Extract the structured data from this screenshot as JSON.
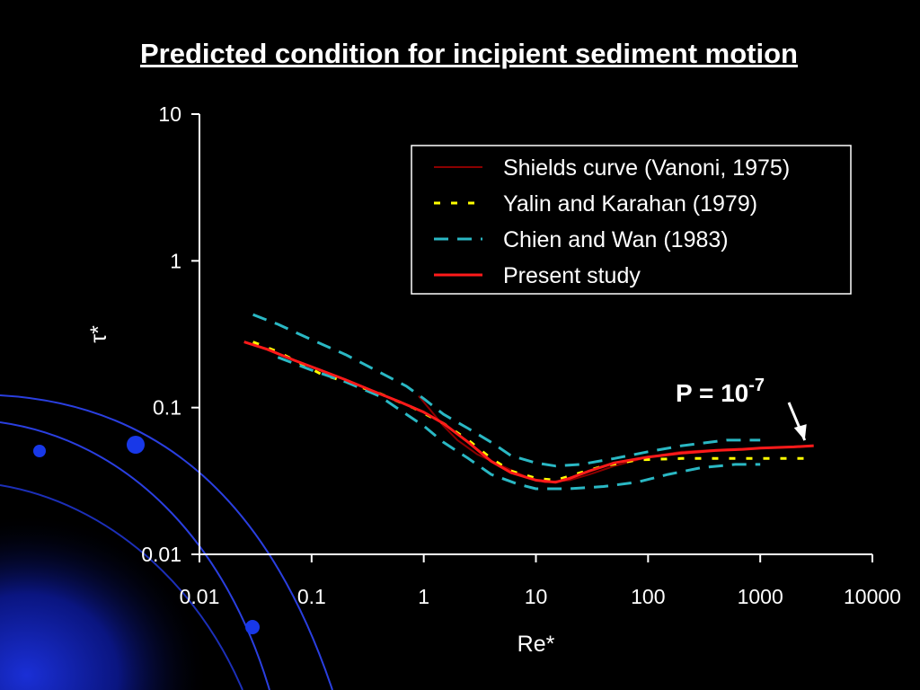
{
  "chart_data": {
    "type": "line",
    "title": "Predicted condition for incipient sediment motion",
    "xlabel": "Re*",
    "ylabel": "τ*",
    "xscale": "log",
    "yscale": "log",
    "xlim": [
      0.01,
      10000
    ],
    "ylim": [
      0.01,
      10
    ],
    "x_ticks": [
      "0.01",
      "0.1",
      "1",
      "10",
      "100",
      "1000",
      "10000"
    ],
    "y_ticks": [
      "0.01",
      "0.1",
      "1",
      "10"
    ],
    "grid": false,
    "legend_position": "top-right",
    "series": [
      {
        "name": "Shields curve (Vanoni, 1975)",
        "color": "#8b0000",
        "style": "solid",
        "points": [
          [
            0.9,
            0.12
          ],
          [
            1.1,
            0.1
          ],
          [
            1.5,
            0.075
          ],
          [
            2,
            0.06
          ],
          [
            3,
            0.048
          ],
          [
            5,
            0.04
          ],
          [
            8,
            0.034
          ],
          [
            12,
            0.031
          ],
          [
            20,
            0.032
          ],
          [
            30,
            0.035
          ],
          [
            50,
            0.04
          ],
          [
            100,
            0.046
          ],
          [
            200,
            0.05
          ],
          [
            500,
            0.052
          ],
          [
            1000,
            0.053
          ]
        ]
      },
      {
        "name": "Yalin and Karahan (1979)",
        "color": "#ffff00",
        "style": "dotted",
        "points": [
          [
            0.03,
            0.28
          ],
          [
            0.05,
            0.24
          ],
          [
            0.08,
            0.2
          ],
          [
            0.12,
            0.17
          ],
          [
            0.2,
            0.15
          ],
          [
            0.4,
            0.125
          ],
          [
            0.8,
            0.1
          ],
          [
            1.5,
            0.078
          ],
          [
            2.5,
            0.06
          ],
          [
            4,
            0.045
          ],
          [
            6,
            0.037
          ],
          [
            10,
            0.033
          ],
          [
            15,
            0.032
          ],
          [
            25,
            0.036
          ],
          [
            40,
            0.04
          ],
          [
            80,
            0.044
          ],
          [
            200,
            0.045
          ],
          [
            500,
            0.045
          ],
          [
            1000,
            0.045
          ],
          [
            3000,
            0.045
          ]
        ]
      },
      {
        "name": "Chien and Wan (1983)",
        "color": "#2ab8c4",
        "style": "dashed",
        "points_upper": [
          [
            0.03,
            0.43
          ],
          [
            0.05,
            0.37
          ],
          [
            0.1,
            0.29
          ],
          [
            0.2,
            0.23
          ],
          [
            0.4,
            0.175
          ],
          [
            0.7,
            0.14
          ],
          [
            1,
            0.115
          ],
          [
            1.5,
            0.09
          ],
          [
            2.5,
            0.072
          ],
          [
            4,
            0.058
          ],
          [
            6,
            0.047
          ],
          [
            10,
            0.042
          ],
          [
            15,
            0.04
          ],
          [
            25,
            0.041
          ],
          [
            50,
            0.045
          ],
          [
            100,
            0.05
          ],
          [
            200,
            0.055
          ],
          [
            500,
            0.06
          ],
          [
            1000,
            0.06
          ]
        ],
        "points_lower": [
          [
            0.05,
            0.22
          ],
          [
            0.1,
            0.18
          ],
          [
            0.2,
            0.15
          ],
          [
            0.4,
            0.12
          ],
          [
            0.7,
            0.09
          ],
          [
            1,
            0.075
          ],
          [
            1.5,
            0.058
          ],
          [
            2.5,
            0.045
          ],
          [
            4,
            0.035
          ],
          [
            7,
            0.03
          ],
          [
            10,
            0.028
          ],
          [
            20,
            0.028
          ],
          [
            40,
            0.029
          ],
          [
            80,
            0.031
          ],
          [
            150,
            0.035
          ],
          [
            300,
            0.039
          ],
          [
            600,
            0.041
          ],
          [
            1000,
            0.041
          ]
        ]
      },
      {
        "name": "Present study",
        "color": "#ff1a1a",
        "style": "solid",
        "points": [
          [
            0.025,
            0.28
          ],
          [
            0.04,
            0.25
          ],
          [
            0.07,
            0.21
          ],
          [
            0.12,
            0.18
          ],
          [
            0.2,
            0.155
          ],
          [
            0.35,
            0.13
          ],
          [
            0.6,
            0.11
          ],
          [
            1,
            0.093
          ],
          [
            1.5,
            0.078
          ],
          [
            2.5,
            0.058
          ],
          [
            4,
            0.043
          ],
          [
            6,
            0.036
          ],
          [
            10,
            0.032
          ],
          [
            15,
            0.031
          ],
          [
            20,
            0.033
          ],
          [
            30,
            0.037
          ],
          [
            50,
            0.042
          ],
          [
            100,
            0.046
          ],
          [
            200,
            0.049
          ],
          [
            400,
            0.051
          ],
          [
            700,
            0.052
          ],
          [
            1000,
            0.053
          ],
          [
            2000,
            0.054
          ],
          [
            3000,
            0.055
          ]
        ]
      }
    ],
    "annotation": {
      "text": "P = 10",
      "exponent": "-7",
      "x": 3000,
      "y": 0.055
    }
  }
}
